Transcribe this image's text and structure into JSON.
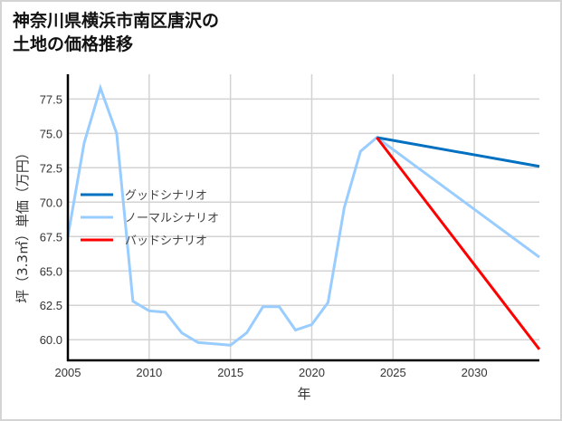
{
  "chart_data": {
    "type": "line",
    "title": "神奈川県横浜市南区唐沢の\n土地の価格推移",
    "xlabel": "年",
    "ylabel": "坪（3.3㎡）単価（万円）",
    "xlim": [
      2005,
      2034
    ],
    "ylim": [
      58.5,
      79.3
    ],
    "x_ticks": [
      2005,
      2010,
      2015,
      2020,
      2025,
      2030
    ],
    "y_ticks": [
      60.0,
      62.5,
      65.0,
      67.5,
      70.0,
      72.5,
      75.0,
      77.5
    ],
    "y_tick_labels": [
      "60.0",
      "62.5",
      "65.0",
      "67.5",
      "70.0",
      "72.5",
      "75.0",
      "77.5"
    ],
    "grid": true,
    "legend_position": "center-left",
    "series": [
      {
        "name": "グッドシナリオ",
        "color": "#0070c0",
        "x": [
          2024,
          2034
        ],
        "values": [
          74.7,
          72.6
        ]
      },
      {
        "name": "ノーマルシナリオ",
        "color": "#99ccff",
        "x": [
          2005,
          2006,
          2007,
          2008,
          2009,
          2010,
          2011,
          2012,
          2013,
          2014,
          2015,
          2016,
          2017,
          2018,
          2019,
          2020,
          2021,
          2022,
          2023,
          2024,
          2034
        ],
        "values": [
          67.5,
          74.3,
          78.3,
          75.0,
          62.8,
          62.1,
          62.0,
          60.5,
          59.8,
          59.7,
          59.6,
          60.5,
          62.4,
          62.4,
          60.7,
          61.1,
          62.7,
          69.6,
          73.7,
          74.7,
          66.0
        ]
      },
      {
        "name": "バッドシナリオ",
        "color": "#ff0000",
        "x": [
          2024,
          2034
        ],
        "values": [
          74.7,
          59.3
        ]
      }
    ]
  }
}
